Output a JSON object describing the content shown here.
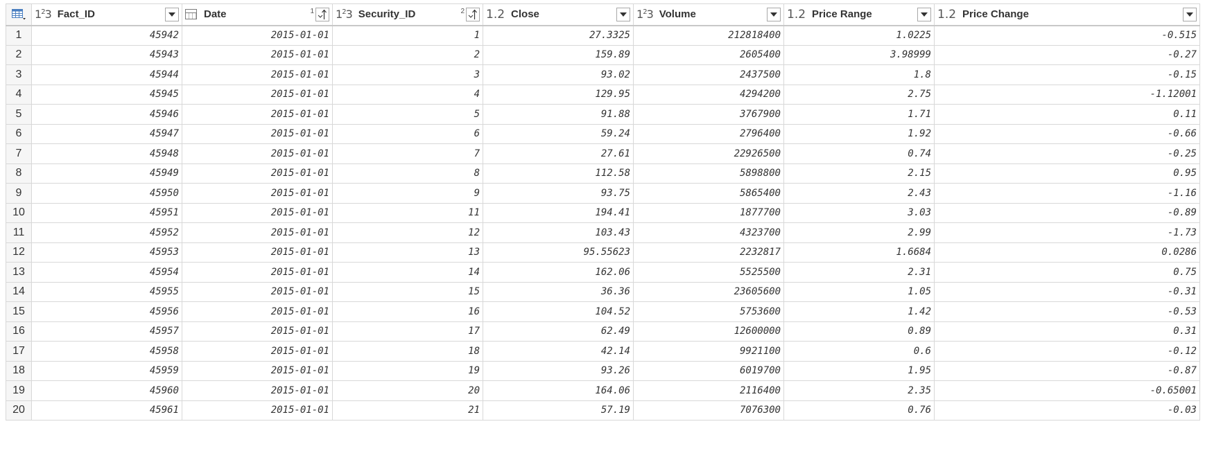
{
  "columns": [
    {
      "name": "Fact_ID",
      "type": "whole-number",
      "type_label_main": "1",
      "type_label_sup": "2",
      "type_label_sub": "3",
      "sort_order": ""
    },
    {
      "name": "Date",
      "type": "date",
      "sort_order": "1"
    },
    {
      "name": "Security_ID",
      "type": "whole-number",
      "type_label_main": "1",
      "type_label_sup": "2",
      "type_label_sub": "3",
      "sort_order": "2"
    },
    {
      "name": "Close",
      "type": "decimal",
      "type_label": "1.2",
      "sort_order": ""
    },
    {
      "name": "Volume",
      "type": "whole-number",
      "type_label_main": "1",
      "type_label_sup": "2",
      "type_label_sub": "3",
      "sort_order": ""
    },
    {
      "name": "Price Range",
      "type": "decimal",
      "type_label": "1.2",
      "sort_order": ""
    },
    {
      "name": "Price Change",
      "type": "decimal",
      "type_label": "1.2",
      "sort_order": ""
    }
  ],
  "icons": {
    "table_corner": "table-icon",
    "dropdown": "chevron-down-icon",
    "sort_ascending": "sort-ascending-icon",
    "date_type": "calendar-icon"
  },
  "rows": [
    {
      "n": "1",
      "cells": [
        "45942",
        "2015-01-01",
        "1",
        "27.3325",
        "212818400",
        "1.0225",
        "-0.515"
      ]
    },
    {
      "n": "2",
      "cells": [
        "45943",
        "2015-01-01",
        "2",
        "159.89",
        "2605400",
        "3.98999",
        "-0.27"
      ]
    },
    {
      "n": "3",
      "cells": [
        "45944",
        "2015-01-01",
        "3",
        "93.02",
        "2437500",
        "1.8",
        "-0.15"
      ]
    },
    {
      "n": "4",
      "cells": [
        "45945",
        "2015-01-01",
        "4",
        "129.95",
        "4294200",
        "2.75",
        "-1.12001"
      ]
    },
    {
      "n": "5",
      "cells": [
        "45946",
        "2015-01-01",
        "5",
        "91.88",
        "3767900",
        "1.71",
        "0.11"
      ]
    },
    {
      "n": "6",
      "cells": [
        "45947",
        "2015-01-01",
        "6",
        "59.24",
        "2796400",
        "1.92",
        "-0.66"
      ]
    },
    {
      "n": "7",
      "cells": [
        "45948",
        "2015-01-01",
        "7",
        "27.61",
        "22926500",
        "0.74",
        "-0.25"
      ]
    },
    {
      "n": "8",
      "cells": [
        "45949",
        "2015-01-01",
        "8",
        "112.58",
        "5898800",
        "2.15",
        "0.95"
      ]
    },
    {
      "n": "9",
      "cells": [
        "45950",
        "2015-01-01",
        "9",
        "93.75",
        "5865400",
        "2.43",
        "-1.16"
      ]
    },
    {
      "n": "10",
      "cells": [
        "45951",
        "2015-01-01",
        "11",
        "194.41",
        "1877700",
        "3.03",
        "-0.89"
      ]
    },
    {
      "n": "11",
      "cells": [
        "45952",
        "2015-01-01",
        "12",
        "103.43",
        "4323700",
        "2.99",
        "-1.73"
      ]
    },
    {
      "n": "12",
      "cells": [
        "45953",
        "2015-01-01",
        "13",
        "95.55623",
        "2232817",
        "1.6684",
        "0.0286"
      ]
    },
    {
      "n": "13",
      "cells": [
        "45954",
        "2015-01-01",
        "14",
        "162.06",
        "5525500",
        "2.31",
        "0.75"
      ]
    },
    {
      "n": "14",
      "cells": [
        "45955",
        "2015-01-01",
        "15",
        "36.36",
        "23605600",
        "1.05",
        "-0.31"
      ]
    },
    {
      "n": "15",
      "cells": [
        "45956",
        "2015-01-01",
        "16",
        "104.52",
        "5753600",
        "1.42",
        "-0.53"
      ]
    },
    {
      "n": "16",
      "cells": [
        "45957",
        "2015-01-01",
        "17",
        "62.49",
        "12600000",
        "0.89",
        "0.31"
      ]
    },
    {
      "n": "17",
      "cells": [
        "45958",
        "2015-01-01",
        "18",
        "42.14",
        "9921100",
        "0.6",
        "-0.12"
      ]
    },
    {
      "n": "18",
      "cells": [
        "45959",
        "2015-01-01",
        "19",
        "93.26",
        "6019700",
        "1.95",
        "-0.87"
      ]
    },
    {
      "n": "19",
      "cells": [
        "45960",
        "2015-01-01",
        "20",
        "164.06",
        "2116400",
        "2.35",
        "-0.65001"
      ]
    },
    {
      "n": "20",
      "cells": [
        "45961",
        "2015-01-01",
        "21",
        "57.19",
        "7076300",
        "0.76",
        "-0.03"
      ]
    }
  ]
}
